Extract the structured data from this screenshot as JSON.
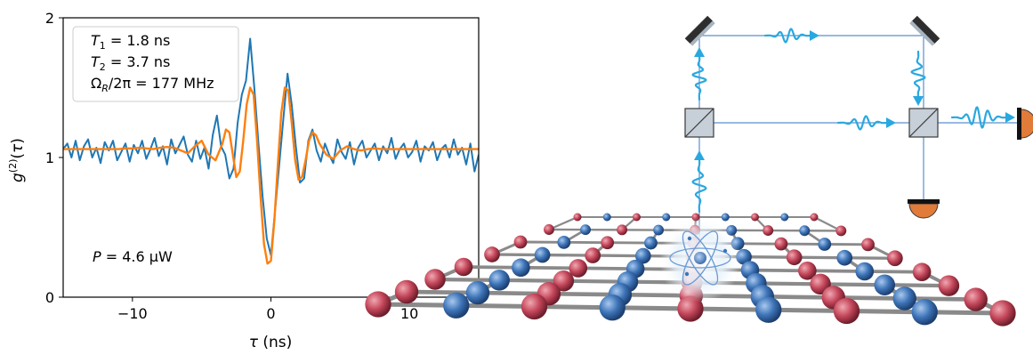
{
  "chart_data": {
    "type": "line",
    "xlabel": "τ (ns)",
    "ylabel": "g(2)(τ)",
    "xlim": [
      -15,
      15
    ],
    "ylim": [
      0,
      2
    ],
    "xticks": [
      -10,
      0,
      10
    ],
    "xtick_labels": [
      "−10",
      "0",
      "10"
    ],
    "yticks": [
      0,
      1,
      2
    ],
    "ytick_labels": [
      "0",
      "1",
      "2"
    ],
    "grid": false,
    "legend": {
      "placement": "top-left",
      "lines": [
        {
          "sym": "T",
          "sub": "1",
          "val": " = 1.8 ns"
        },
        {
          "sym": "T",
          "sub": "2",
          "val": " =  3.7 ns"
        },
        {
          "sym": "Ω",
          "sub": "R",
          "val": "/2π =  177 MHz"
        }
      ]
    },
    "annotation": {
      "sym": "P",
      "val": " = 4.6 µW",
      "placement": "bottom-left"
    },
    "series": [
      {
        "role": "measured",
        "color": "#1f77b4",
        "x": [
          -15.0,
          -14.7,
          -14.4,
          -14.1,
          -13.8,
          -13.5,
          -13.2,
          -12.9,
          -12.6,
          -12.3,
          -12.0,
          -11.7,
          -11.4,
          -11.1,
          -10.8,
          -10.5,
          -10.2,
          -9.9,
          -9.6,
          -9.3,
          -9.0,
          -8.7,
          -8.4,
          -8.1,
          -7.8,
          -7.5,
          -7.2,
          -6.9,
          -6.6,
          -6.3,
          -6.0,
          -5.7,
          -5.4,
          -5.1,
          -4.8,
          -4.5,
          -4.2,
          -3.9,
          -3.6,
          -3.3,
          -3.0,
          -2.7,
          -2.4,
          -2.1,
          -1.8,
          -1.5,
          -1.2,
          -0.9,
          -0.6,
          -0.3,
          0.0,
          0.3,
          0.6,
          0.9,
          1.2,
          1.5,
          1.8,
          2.1,
          2.4,
          2.7,
          3.0,
          3.3,
          3.6,
          3.9,
          4.2,
          4.5,
          4.8,
          5.1,
          5.4,
          5.7,
          6.0,
          6.3,
          6.6,
          6.9,
          7.2,
          7.5,
          7.8,
          8.1,
          8.4,
          8.7,
          9.0,
          9.3,
          9.6,
          9.9,
          10.2,
          10.5,
          10.8,
          11.1,
          11.4,
          11.7,
          12.0,
          12.3,
          12.6,
          12.9,
          13.2,
          13.5,
          13.8,
          14.1,
          14.4,
          14.7,
          15.0
        ],
        "y": [
          1.06,
          1.1,
          1.0,
          1.12,
          0.98,
          1.08,
          1.13,
          1.0,
          1.07,
          0.96,
          1.11,
          1.05,
          1.12,
          0.98,
          1.04,
          1.1,
          0.97,
          1.09,
          1.03,
          1.12,
          0.99,
          1.06,
          1.14,
          1.01,
          1.08,
          0.95,
          1.13,
          1.03,
          1.09,
          1.15,
          1.02,
          0.97,
          1.12,
          0.99,
          1.07,
          0.92,
          1.16,
          1.3,
          1.08,
          1.02,
          0.85,
          0.92,
          1.25,
          1.45,
          1.55,
          1.85,
          1.5,
          1.1,
          0.72,
          0.42,
          0.3,
          0.62,
          0.95,
          1.28,
          1.6,
          1.38,
          1.08,
          0.82,
          0.85,
          1.12,
          1.2,
          1.05,
          0.97,
          1.1,
          1.02,
          0.96,
          1.13,
          1.04,
          0.99,
          1.11,
          0.95,
          1.07,
          1.12,
          1.0,
          1.05,
          1.1,
          0.98,
          1.08,
          1.03,
          1.14,
          0.99,
          1.06,
          1.1,
          1.0,
          1.04,
          1.12,
          0.97,
          1.08,
          1.05,
          1.11,
          0.98,
          1.06,
          1.09,
          1.0,
          1.13,
          1.02,
          1.07,
          0.95,
          1.1,
          0.9,
          1.02
        ]
      },
      {
        "role": "fit",
        "color": "#ff7f0e",
        "x": [
          -15.0,
          -14.5,
          -14.0,
          -13.5,
          -13.0,
          -12.5,
          -12.0,
          -11.5,
          -11.0,
          -10.5,
          -10.0,
          -9.5,
          -9.0,
          -8.5,
          -8.0,
          -7.5,
          -7.0,
          -6.5,
          -6.0,
          -5.5,
          -5.0,
          -4.5,
          -4.0,
          -3.5,
          -3.25,
          -3.0,
          -2.75,
          -2.5,
          -2.25,
          -2.0,
          -1.75,
          -1.5,
          -1.25,
          -1.0,
          -0.75,
          -0.5,
          -0.25,
          0.0,
          0.25,
          0.5,
          0.75,
          1.0,
          1.25,
          1.5,
          1.75,
          2.0,
          2.25,
          2.5,
          2.75,
          3.0,
          3.25,
          3.5,
          4.0,
          4.5,
          5.0,
          5.5,
          6.0,
          6.5,
          7.0,
          7.5,
          8.0,
          8.5,
          9.0,
          9.5,
          10.0,
          10.5,
          11.0,
          11.5,
          12.0,
          12.5,
          13.0,
          13.5,
          14.0,
          14.5,
          15.0
        ],
        "y": [
          1.06,
          1.06,
          1.06,
          1.06,
          1.06,
          1.06,
          1.06,
          1.06,
          1.06,
          1.065,
          1.065,
          1.07,
          1.065,
          1.06,
          1.07,
          1.075,
          1.07,
          1.05,
          1.03,
          1.08,
          1.12,
          1.02,
          0.98,
          1.1,
          1.2,
          1.18,
          1.02,
          0.86,
          0.9,
          1.12,
          1.38,
          1.5,
          1.45,
          1.12,
          0.72,
          0.38,
          0.24,
          0.26,
          0.55,
          0.95,
          1.32,
          1.5,
          1.48,
          1.25,
          0.98,
          0.84,
          0.86,
          0.98,
          1.12,
          1.18,
          1.16,
          1.1,
          1.02,
          0.99,
          1.05,
          1.08,
          1.06,
          1.05,
          1.06,
          1.065,
          1.06,
          1.06,
          1.06,
          1.06,
          1.06,
          1.06,
          1.06,
          1.06,
          1.06,
          1.06,
          1.06,
          1.06,
          1.06,
          1.06,
          1.06
        ]
      }
    ]
  },
  "colors": {
    "beam": "#5a8fd0",
    "photon": "#29a8e0",
    "splitter_fill": "#c7d0d9",
    "mirror": "#2e2e2e",
    "mirror_face": "#a7b4c0",
    "detector": "#e07b39",
    "atom_blue": "#3d74b8",
    "atom_red": "#c4465a",
    "bond": "#8a8a8a",
    "emitter": "#6b9bd3"
  },
  "diagram": {
    "description_icons": [
      "mirror-icon",
      "beam-splitter-icon",
      "photon-wavepacket-icon",
      "detector-icon",
      "lattice-icon",
      "atom-emitter-icon"
    ]
  }
}
